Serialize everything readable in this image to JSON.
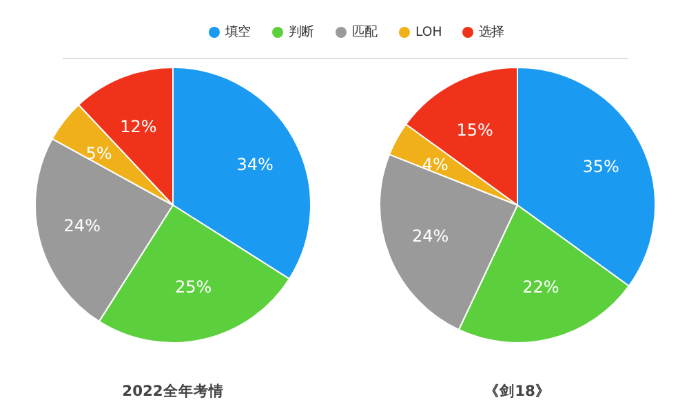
{
  "chart_data": [
    {
      "type": "pie",
      "title": "2022全年考情",
      "categories": [
        "填空",
        "判断",
        "匹配",
        "LOH",
        "选择"
      ],
      "values": [
        34,
        25,
        24,
        5,
        12
      ],
      "value_labels": [
        "34%",
        "25%",
        "24%",
        "5%",
        "12%"
      ],
      "colors": [
        "#1a9af0",
        "#5ccf3c",
        "#9a9a9a",
        "#f0b01a",
        "#f0321a"
      ],
      "legend": "top"
    },
    {
      "type": "pie",
      "title": "《剑18》",
      "categories": [
        null,
        null,
        null,
        null,
        null
      ],
      "values": [
        35,
        22,
        24,
        4,
        15
      ],
      "value_labels": [
        "35%",
        "22%",
        "24%",
        "4%",
        "15%"
      ],
      "colors": [
        "#1a9af0",
        "#5ccf3c",
        "#9a9a9a",
        "#f0b01a",
        "#f0321a"
      ]
    }
  ]
}
